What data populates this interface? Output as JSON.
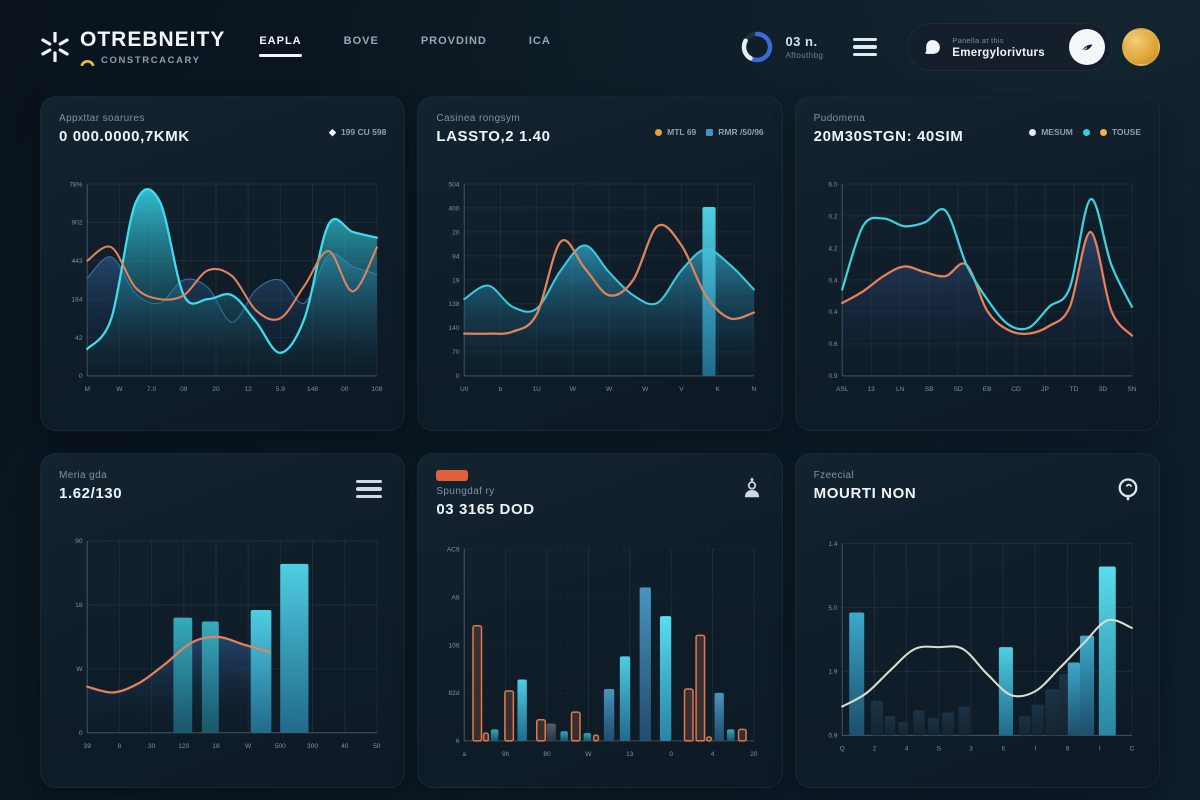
{
  "theme": {
    "bg": "#0b1722",
    "card": "#11202c",
    "cyan": "#3fd2e4",
    "orange": "#e0835c",
    "navy": "#2b5585",
    "blue": "#4a9cc8",
    "gold": "#e8b54a",
    "badge": "#e2603c",
    "white": "#f2f6f9"
  },
  "header": {
    "logo": {
      "title": "OTREBNEITY",
      "subtitle": "CONSTRCACARY"
    },
    "nav": [
      {
        "label": "EAPLA"
      },
      {
        "label": "BOVE"
      },
      {
        "label": "PROVDIND"
      },
      {
        "label": "ICA"
      }
    ],
    "status": {
      "value": "03 n.",
      "caption": "Aftouthbg"
    },
    "profile": {
      "caption": "Panella at this",
      "name": "Emergylorivturs"
    }
  },
  "cards": [
    {
      "label": "Appxttar soarures",
      "value": "0 000.0000,7KMK",
      "legend": [
        {
          "label": "199 CU 598",
          "color": "#ffffff",
          "shape": "diamond"
        }
      ]
    },
    {
      "label": "Casinea rongsym",
      "value": "LASSTO,2 1.40",
      "legend": [
        {
          "label": "MTL 69",
          "color": "#e8a23c",
          "shape": "dot"
        },
        {
          "label": "RMR /50/96",
          "color": "#4a90c4",
          "shape": "square"
        }
      ]
    },
    {
      "label": "Pudomena",
      "value": "20M30STGN: 40SIM",
      "legend": [
        {
          "label": "MESUM",
          "color": "#d8dde2",
          "shape": "dot"
        },
        {
          "label": "",
          "color": "#35d0e0",
          "shape": "dot"
        },
        {
          "label": "TOUSE",
          "color": "#e8b54a",
          "shape": "dot"
        }
      ]
    },
    {
      "label": "Meria gda",
      "value": "1.62/130",
      "icon": "menu"
    },
    {
      "label": "Spungdaf ry",
      "value": "03 3165 DOD",
      "badge": true,
      "icon": "user"
    },
    {
      "label": "Fzeecial",
      "value": "MOURTI NON",
      "icon": "globe"
    }
  ],
  "charts": {
    "p1": {
      "type": "area-line-combo",
      "x": [
        "M",
        "W",
        "7.0",
        "09",
        "20",
        "12",
        "5.9",
        "148",
        "00",
        "108"
      ],
      "y": [
        "78%",
        "902",
        "443",
        "184",
        "42",
        "0"
      ],
      "series": [
        {
          "name": "navy-area",
          "kind": "area",
          "color": "#3a6ea0",
          "width": 1.2,
          "fill": {
            "from": "#2b5585",
            "fo": 0.75,
            "to": "#0d1b2a",
            "to2": 0.08
          },
          "values": [
            51,
            62,
            43,
            38,
            50,
            46,
            28,
            45,
            50,
            38,
            63,
            57,
            53
          ]
        },
        {
          "name": "cyan-area",
          "kind": "area",
          "color": "#41dcec",
          "width": 2.4,
          "fill": {
            "from": "#35cfe2",
            "fo": 0.9,
            "to": "#0e3a4a",
            "to2": 0.06
          },
          "values": [
            14,
            30,
            90,
            91,
            42,
            40,
            42,
            28,
            12,
            30,
            79,
            75,
            72
          ]
        },
        {
          "name": "orange-line",
          "kind": "line",
          "color": "#e0835c",
          "width": 2.2,
          "values": [
            60,
            67,
            46,
            40,
            42,
            55,
            52,
            34,
            30,
            47,
            65,
            44,
            67
          ]
        }
      ]
    },
    "p2": {
      "type": "area-line-bar-combo",
      "x": [
        "U0",
        "b",
        "1U",
        "W",
        "W",
        "W",
        "V",
        "K",
        "N"
      ],
      "y": [
        "504",
        "400",
        "20",
        "94",
        "19",
        "138",
        "140",
        "70",
        "0"
      ],
      "series": [
        {
          "name": "blue-area",
          "kind": "area",
          "color": "#3fc8dc",
          "width": 2.2,
          "fill": {
            "from": "#2f9fc4",
            "fo": 0.8,
            "to": "#0e2a3e",
            "to2": 0.08
          },
          "values": [
            40,
            47,
            36,
            35,
            55,
            68,
            54,
            42,
            38,
            55,
            66,
            58,
            45
          ]
        },
        {
          "name": "cyan-bar",
          "kind": "bars",
          "bars": [
            [
              0.845,
              14,
              88,
              "cyan"
            ]
          ]
        },
        {
          "name": "orange-line",
          "kind": "line",
          "color": "#e0835c",
          "width": 2.4,
          "values": [
            22,
            22,
            23,
            32,
            70,
            56,
            42,
            50,
            78,
            68,
            42,
            30,
            33
          ]
        }
      ]
    },
    "p3": {
      "type": "dual-line-area",
      "x": [
        "ASL",
        "13",
        "LN",
        "SB",
        "SD",
        "EB",
        "CD",
        "JP",
        "TD",
        "3D",
        "SN"
      ],
      "y": [
        "6.0",
        "0.2",
        "4.2",
        "0.4",
        "0.4",
        "0.6",
        "0.9"
      ],
      "series": [
        {
          "name": "orange-area",
          "kind": "area",
          "color": "#e8815a",
          "width": 2.4,
          "fill": {
            "from": "#3a5890",
            "fo": 0.6,
            "to": "#10192a",
            "to2": 0.1
          },
          "values": [
            38,
            44,
            52,
            57,
            54,
            52,
            58,
            34,
            24,
            22,
            26,
            36,
            75,
            34,
            21
          ]
        },
        {
          "name": "cyan-line",
          "kind": "line",
          "color": "#3ed0dc",
          "width": 2.4,
          "values": [
            45,
            78,
            82,
            78,
            80,
            86,
            58,
            40,
            27,
            25,
            36,
            46,
            92,
            58,
            36
          ]
        }
      ]
    },
    "p4": {
      "type": "bar-area-combo",
      "x": [
        "39",
        "8",
        "30",
        "120",
        "18",
        "W",
        "500",
        "300",
        "40",
        "50"
      ],
      "y": [
        "90",
        "18",
        "W",
        "0"
      ],
      "series": [
        {
          "name": "navy-area",
          "kind": "area",
          "color": "#2b5585",
          "width": 1,
          "xspan": [
            0,
            0.63
          ],
          "fill": {
            "from": "#2b5585",
            "fo": 0.7,
            "to": "#0d1b2a",
            "to2": 0.08
          },
          "values": [
            24,
            21,
            26,
            36,
            47,
            50,
            46,
            42
          ]
        },
        {
          "name": "bars",
          "kind": "bars",
          "bars": [
            [
              0.33,
              20,
              60,
              "teal"
            ],
            [
              0.425,
              18,
              58,
              "teal"
            ],
            [
              0.6,
              22,
              64,
              "cyan"
            ],
            [
              0.715,
              30,
              88,
              "cyan"
            ]
          ]
        },
        {
          "name": "orange-line",
          "kind": "line",
          "color": "#e0835c",
          "width": 2.4,
          "xspan": [
            0,
            0.63
          ],
          "values": [
            24,
            21,
            26,
            36,
            47,
            50,
            46,
            42
          ]
        }
      ]
    },
    "p5": {
      "type": "grouped-bars",
      "x": [
        "a",
        "9h",
        "80",
        "W",
        "13",
        "0",
        "4",
        "20"
      ],
      "y": [
        "AC9",
        "A8",
        "106",
        "82d",
        "6"
      ],
      "dashed": true,
      "series": [
        {
          "name": "bars",
          "kind": "bars",
          "bars": [
            [
              0.045,
              9,
              60,
              "orange"
            ],
            [
              0.075,
              5,
              4,
              "orange"
            ],
            [
              0.105,
              8,
              6,
              "teal"
            ],
            [
              0.155,
              9,
              26,
              "orange"
            ],
            [
              0.2,
              10,
              32,
              "cyan"
            ],
            [
              0.265,
              9,
              11,
              "orange"
            ],
            [
              0.3,
              10,
              9,
              "gray"
            ],
            [
              0.345,
              8,
              5,
              "teal"
            ],
            [
              0.385,
              9,
              15,
              "orange"
            ],
            [
              0.425,
              8,
              4,
              "teal"
            ],
            [
              0.455,
              5,
              3,
              "orange"
            ],
            [
              0.5,
              11,
              27,
              "blue"
            ],
            [
              0.555,
              11,
              44,
              "cyan"
            ],
            [
              0.625,
              12,
              80,
              "blue"
            ],
            [
              0.695,
              12,
              65,
              "bright"
            ],
            [
              0.775,
              9,
              27,
              "orange"
            ],
            [
              0.815,
              9,
              55,
              "orange"
            ],
            [
              0.845,
              5,
              2,
              "orange"
            ],
            [
              0.88,
              10,
              25,
              "blue"
            ],
            [
              0.92,
              8,
              6,
              "teal"
            ],
            [
              0.96,
              8,
              6,
              "orange"
            ]
          ]
        }
      ]
    },
    "p6": {
      "type": "bar-line-combo",
      "x": [
        "Q",
        "2",
        "4",
        "S",
        "3",
        "II",
        "I",
        "8",
        "I",
        "C"
      ],
      "y": [
        "1.4",
        "5.0",
        "1.9",
        "0.9"
      ],
      "series": [
        {
          "name": "silhouette-bars",
          "kind": "bars",
          "bars": [
            [
              0.12,
              13,
              18,
              "dark"
            ],
            [
              0.165,
              11,
              10,
              "dark"
            ],
            [
              0.21,
              10,
              7,
              "dark"
            ],
            [
              0.265,
              12,
              13,
              "dark"
            ],
            [
              0.315,
              12,
              9,
              "dark"
            ],
            [
              0.365,
              13,
              12,
              "dark"
            ],
            [
              0.42,
              12,
              15,
              "dark"
            ],
            [
              0.63,
              12,
              10,
              "dark"
            ],
            [
              0.675,
              13,
              16,
              "dark"
            ],
            [
              0.725,
              15,
              24,
              "dark"
            ],
            [
              0.77,
              13,
              32,
              "dark"
            ]
          ]
        },
        {
          "name": "blue-bars",
          "kind": "bars",
          "bars": [
            [
              0.05,
              16,
              64,
              "blue2"
            ],
            [
              0.565,
              15,
              46,
              "cyan"
            ],
            [
              0.8,
              13,
              38,
              "blue2"
            ],
            [
              0.845,
              15,
              52,
              "blue2"
            ],
            [
              0.915,
              18,
              88,
              "bright"
            ]
          ]
        },
        {
          "name": "trend-line",
          "kind": "line",
          "color": "#d8ddcc",
          "width": 2.2,
          "values": [
            15,
            22,
            34,
            45,
            46,
            45,
            32,
            21,
            23,
            35,
            48,
            60,
            56
          ]
        }
      ]
    }
  }
}
